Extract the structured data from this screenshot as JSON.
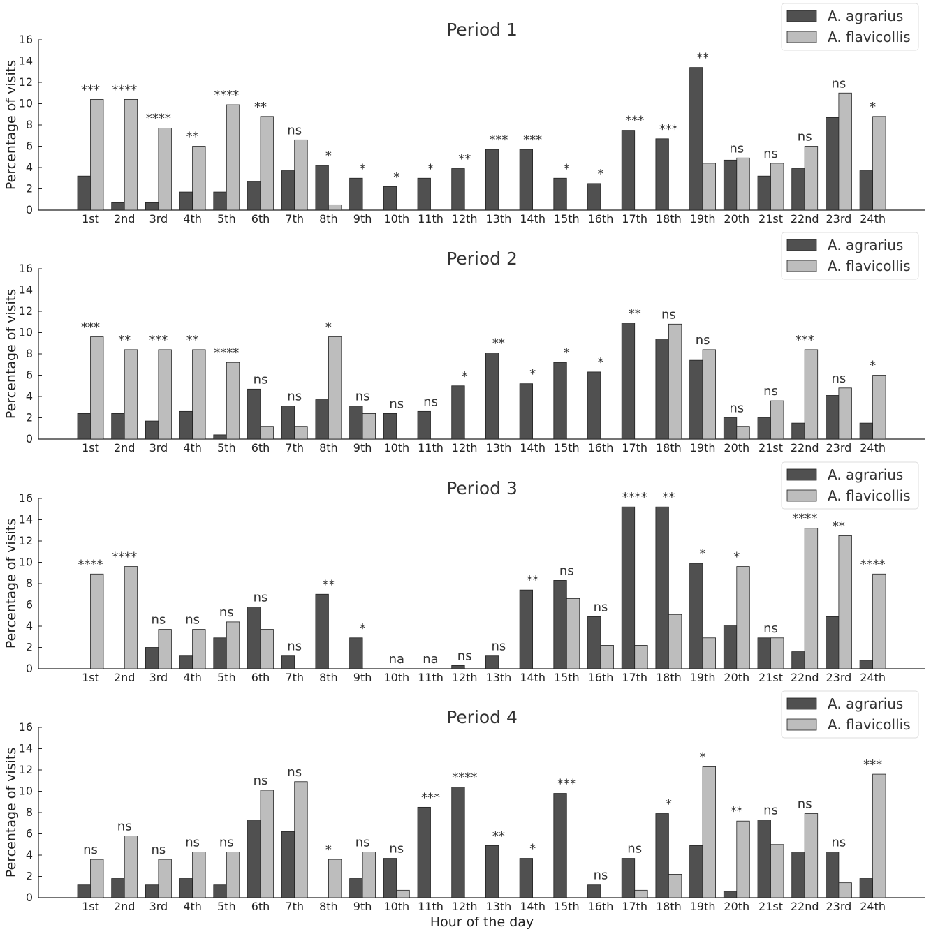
{
  "colors": {
    "agrarius": "#505050",
    "flavicollis": "#bdbdbd"
  },
  "chart_data": [
    {
      "type": "bar",
      "title": "Period 1",
      "xlabel": "",
      "ylabel": "Percentage of visits",
      "ylim": [
        0,
        16
      ],
      "yticks": [
        "0",
        "2",
        "4",
        "6",
        "8",
        "10",
        "12",
        "14",
        "16"
      ],
      "legend": "top-right",
      "categories": [
        "1st",
        "2nd",
        "3rd",
        "4th",
        "5th",
        "6th",
        "7th",
        "8th",
        "9th",
        "10th",
        "11th",
        "12th",
        "13th",
        "14th",
        "15th",
        "16th",
        "17th",
        "18th",
        "19th",
        "20th",
        "21st",
        "22nd",
        "23rd",
        "24th"
      ],
      "series": [
        {
          "name": "A. agrarius",
          "values": [
            3.2,
            0.7,
            0.7,
            1.7,
            1.7,
            2.7,
            3.7,
            4.2,
            3.0,
            2.2,
            3.0,
            3.9,
            5.7,
            5.7,
            3.0,
            2.5,
            7.5,
            6.7,
            13.4,
            4.7,
            3.2,
            3.9,
            8.7,
            3.7
          ]
        },
        {
          "name": "A. flavicollis",
          "values": [
            10.4,
            10.4,
            7.7,
            6.0,
            9.9,
            8.8,
            6.6,
            0.5,
            0,
            0,
            0,
            0,
            0,
            0,
            0,
            0,
            0,
            0,
            4.4,
            4.9,
            4.4,
            6.0,
            11.0,
            8.8
          ]
        }
      ],
      "annotations": [
        "***",
        "****",
        "****",
        "**",
        "****",
        "**",
        "ns",
        "*",
        "*",
        "*",
        "*",
        "**",
        "***",
        "***",
        "*",
        "*",
        "***",
        "***",
        "**",
        "ns",
        "ns",
        "ns",
        "ns",
        "*"
      ]
    },
    {
      "type": "bar",
      "title": "Period 2",
      "xlabel": "",
      "ylabel": "Percentage of visits",
      "ylim": [
        0,
        16
      ],
      "yticks": [
        "0",
        "2",
        "4",
        "6",
        "8",
        "10",
        "12",
        "14",
        "16"
      ],
      "legend": "top-right",
      "categories": [
        "1st",
        "2nd",
        "3rd",
        "4th",
        "5th",
        "6th",
        "7th",
        "8th",
        "9th",
        "10th",
        "11th",
        "12th",
        "13th",
        "14th",
        "15th",
        "16th",
        "17th",
        "18th",
        "19th",
        "20th",
        "21st",
        "22nd",
        "23rd",
        "24th"
      ],
      "series": [
        {
          "name": "A. agrarius",
          "values": [
            2.4,
            2.4,
            1.7,
            2.6,
            0.4,
            4.7,
            3.1,
            3.7,
            3.1,
            2.4,
            2.6,
            5.0,
            8.1,
            5.2,
            7.2,
            6.3,
            10.9,
            9.4,
            7.4,
            2.0,
            2.0,
            1.5,
            4.1,
            1.5
          ]
        },
        {
          "name": "A. flavicollis",
          "values": [
            9.6,
            8.4,
            8.4,
            8.4,
            7.2,
            1.2,
            1.2,
            9.6,
            2.4,
            0,
            0,
            0,
            0,
            0,
            0,
            0,
            0,
            10.8,
            8.4,
            1.2,
            3.6,
            8.4,
            4.8,
            6.0
          ]
        }
      ],
      "annotations": [
        "***",
        "**",
        "***",
        "**",
        "****",
        "ns",
        "ns",
        "*",
        "ns",
        "ns",
        "ns",
        "*",
        "**",
        "*",
        "*",
        "*",
        "**",
        "ns",
        "ns",
        "ns",
        "ns",
        "***",
        "ns",
        "*"
      ]
    },
    {
      "type": "bar",
      "title": "Period 3",
      "xlabel": "",
      "ylabel": "Percentage of visits",
      "ylim": [
        0,
        16
      ],
      "yticks": [
        "0",
        "2",
        "4",
        "6",
        "8",
        "10",
        "12",
        "14",
        "16"
      ],
      "legend": "top-right",
      "categories": [
        "1st",
        "2nd",
        "3rd",
        "4th",
        "5th",
        "6th",
        "7th",
        "8th",
        "9th",
        "10th",
        "11th",
        "12th",
        "13th",
        "14th",
        "15th",
        "16th",
        "17th",
        "18th",
        "19th",
        "20th",
        "21st",
        "22nd",
        "23rd",
        "24th"
      ],
      "series": [
        {
          "name": "A. agrarius",
          "values": [
            0,
            0,
            2.0,
            1.2,
            2.9,
            5.8,
            1.2,
            7.0,
            2.9,
            0,
            0,
            0.3,
            1.2,
            7.4,
            8.3,
            4.9,
            15.2,
            15.2,
            9.9,
            4.1,
            2.9,
            1.6,
            4.9,
            0.8
          ]
        },
        {
          "name": "A. flavicollis",
          "values": [
            8.9,
            9.6,
            3.7,
            3.7,
            4.4,
            3.7,
            0,
            0,
            0,
            0,
            0,
            0,
            0,
            0,
            6.6,
            2.2,
            2.2,
            5.1,
            2.9,
            9.6,
            2.9,
            13.2,
            12.5,
            8.9
          ]
        }
      ],
      "annotations": [
        "****",
        "****",
        "ns",
        "ns",
        "ns",
        "ns",
        "ns",
        "**",
        "*",
        "na",
        "na",
        "ns",
        "ns",
        "**",
        "ns",
        "ns",
        "****",
        "**",
        "*",
        "*",
        "ns",
        "****",
        "**",
        "****"
      ]
    },
    {
      "type": "bar",
      "title": "Period 4",
      "xlabel": "Hour of the day",
      "ylabel": "Percentage of visits",
      "ylim": [
        0,
        16
      ],
      "yticks": [
        "0",
        "2",
        "4",
        "6",
        "8",
        "10",
        "12",
        "14",
        "16"
      ],
      "legend": "top-right",
      "categories": [
        "1st",
        "2nd",
        "3rd",
        "4th",
        "5th",
        "6th",
        "7th",
        "8th",
        "9th",
        "10th",
        "11th",
        "12th",
        "13th",
        "14th",
        "15th",
        "16th",
        "17th",
        "18th",
        "19th",
        "20th",
        "21st",
        "22nd",
        "23rd",
        "24th"
      ],
      "series": [
        {
          "name": "A. agrarius",
          "values": [
            1.2,
            1.8,
            1.2,
            1.8,
            1.2,
            7.3,
            6.2,
            0,
            1.8,
            3.7,
            8.5,
            10.4,
            4.9,
            3.7,
            9.8,
            1.2,
            3.7,
            7.9,
            4.9,
            0.6,
            7.3,
            4.3,
            4.3,
            1.8
          ]
        },
        {
          "name": "A. flavicollis",
          "values": [
            3.6,
            5.8,
            3.6,
            4.3,
            4.3,
            10.1,
            10.9,
            3.6,
            4.3,
            0.7,
            0,
            0,
            0,
            0,
            0,
            0,
            0.7,
            2.2,
            12.3,
            7.2,
            5.0,
            7.9,
            1.4,
            11.6
          ]
        }
      ],
      "annotations": [
        "ns",
        "ns",
        "ns",
        "ns",
        "ns",
        "ns",
        "ns",
        "*",
        "ns",
        "ns",
        "***",
        "****",
        "**",
        "*",
        "***",
        "ns",
        "ns",
        "*",
        "*",
        "**",
        "ns",
        "ns",
        "ns",
        "***"
      ]
    }
  ]
}
